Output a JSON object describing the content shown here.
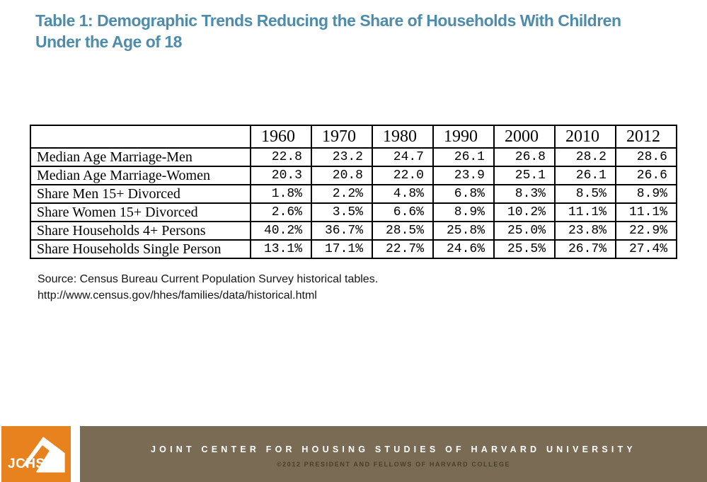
{
  "title": {
    "lines": [
      "Table 1: Demographic Trends Reducing the Share of Households With Children",
      "Under the Age of 18"
    ],
    "color": "#4e8cab"
  },
  "table": {
    "corner_label": "",
    "columns": [
      "1960",
      "1970",
      "1980",
      "1990",
      "2000",
      "2010",
      "2012"
    ],
    "rows": [
      {
        "label": "Median Age Marriage-Men",
        "values": [
          "22.8",
          "23.2",
          "24.7",
          "26.1",
          "26.8",
          "28.2",
          "28.6"
        ]
      },
      {
        "label": "Median Age Marriage-Women",
        "values": [
          "20.3",
          "20.8",
          "22.0",
          "23.9",
          "25.1",
          "26.1",
          "26.6"
        ]
      },
      {
        "label": "Share Men 15+ Divorced",
        "values": [
          "1.8%",
          "2.2%",
          "4.8%",
          "6.8%",
          "8.3%",
          "8.5%",
          "8.9%"
        ]
      },
      {
        "label": "Share Women 15+ Divorced",
        "values": [
          "2.6%",
          "3.5%",
          "6.6%",
          "8.9%",
          "10.2%",
          "11.1%",
          "11.1%"
        ]
      },
      {
        "label": "Share Households 4+ Persons",
        "values": [
          "40.2%",
          "36.7%",
          "28.5%",
          "25.8%",
          "25.0%",
          "23.8%",
          "22.9%"
        ]
      },
      {
        "label": "Share Households Single Person",
        "values": [
          "13.1%",
          "17.1%",
          "22.7%",
          "24.6%",
          "25.5%",
          "26.7%",
          "27.4%"
        ]
      }
    ]
  },
  "chart_data": {
    "type": "table",
    "title": "Table 1: Demographic Trends Reducing the Share of Households With Children Under the Age of 18",
    "categories": [
      "1960",
      "1970",
      "1980",
      "1990",
      "2000",
      "2010",
      "2012"
    ],
    "series": [
      {
        "name": "Median Age Marriage-Men",
        "values": [
          22.8,
          23.2,
          24.7,
          26.1,
          26.8,
          28.2,
          28.6
        ]
      },
      {
        "name": "Median Age Marriage-Women",
        "values": [
          20.3,
          20.8,
          22.0,
          23.9,
          25.1,
          26.1,
          26.6
        ]
      },
      {
        "name": "Share Men 15+ Divorced",
        "values": [
          1.8,
          2.2,
          4.8,
          6.8,
          8.3,
          8.5,
          8.9
        ]
      },
      {
        "name": "Share Women 15+ Divorced",
        "values": [
          2.6,
          3.5,
          6.6,
          8.9,
          10.2,
          11.1,
          11.1
        ]
      },
      {
        "name": "Share Households 4+ Persons",
        "values": [
          40.2,
          36.7,
          28.5,
          25.8,
          25.0,
          23.8,
          22.9
        ]
      },
      {
        "name": "Share Households Single Person",
        "values": [
          13.1,
          17.1,
          22.7,
          24.6,
          25.5,
          26.7,
          27.4
        ]
      }
    ]
  },
  "source": {
    "line1": "Source: Census Bureau Current Population Survey historical tables.",
    "line2": "http://www.census.gov/hhes/families/data/historical.html"
  },
  "footer": {
    "logo_text": "JCHS",
    "logo_bg": "#e8821e",
    "bar_bg": "#7a6b55",
    "org_line": "JOINT CENTER FOR HOUSING STUDIES OF HARVARD UNIVERSITY",
    "copyright_line": "©2012 PRESIDENT AND FELLOWS OF HARVARD COLLEGE"
  }
}
